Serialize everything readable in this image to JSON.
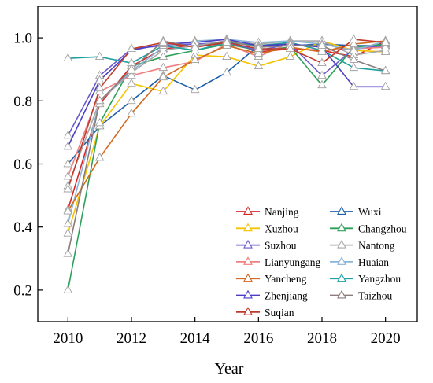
{
  "chart_data": {
    "type": "line",
    "title": "",
    "xlabel": "Year",
    "ylabel": "",
    "xlim": [
      2009.05,
      2021.0
    ],
    "ylim": [
      0.1,
      1.1
    ],
    "xticks": [
      2010,
      2012,
      2014,
      2016,
      2018,
      2020
    ],
    "yticks": [
      0.2,
      0.4,
      0.6,
      0.8,
      1.0
    ],
    "xtick_labels": [
      "2010",
      "2012",
      "2014",
      "2016",
      "2018",
      "2020"
    ],
    "ytick_labels": [
      "0.2",
      "0.4",
      "0.6",
      "0.8",
      "1.0"
    ],
    "grid": false,
    "legend_position": "lower-right",
    "marker": "hollow-triangle",
    "x": [
      2010,
      2011,
      2012,
      2013,
      2014,
      2015,
      2016,
      2017,
      2018,
      2019,
      2020
    ],
    "series": [
      {
        "name": "Nanjing",
        "color": "#d62728",
        "values": [
          0.455,
          0.79,
          0.91,
          0.965,
          0.975,
          0.99,
          0.955,
          0.965,
          0.96,
          0.94,
          0.99
        ]
      },
      {
        "name": "Wuxi",
        "color": "#1f5fa8",
        "values": [
          0.6,
          0.72,
          0.8,
          0.88,
          0.835,
          0.89,
          0.975,
          0.975,
          0.98,
          0.975,
          0.975
        ]
      },
      {
        "name": "Xuzhou",
        "color": "#f5c400",
        "values": [
          0.38,
          0.72,
          0.855,
          0.83,
          0.945,
          0.94,
          0.91,
          0.94,
          0.99,
          0.96,
          0.955
        ]
      },
      {
        "name": "Changzhou",
        "color": "#2ca05a",
        "values": [
          0.2,
          0.73,
          0.91,
          0.94,
          0.96,
          0.98,
          0.96,
          0.97,
          0.85,
          0.97,
          0.98
        ]
      },
      {
        "name": "Suzhou",
        "color": "#6a5acd",
        "values": [
          0.69,
          0.88,
          0.965,
          0.975,
          0.98,
          0.985,
          0.96,
          0.98,
          0.88,
          0.965,
          0.975
        ]
      },
      {
        "name": "Nantong",
        "color": "#a8a8a8",
        "values": [
          0.53,
          0.8,
          0.89,
          0.96,
          0.975,
          0.99,
          0.98,
          0.99,
          0.99,
          0.945,
          0.96
        ]
      },
      {
        "name": "Lianyungang",
        "color": "#f08080",
        "values": [
          0.56,
          0.83,
          0.88,
          0.905,
          0.925,
          0.98,
          0.94,
          0.985,
          0.96,
          0.965,
          0.97
        ]
      },
      {
        "name": "Huaian",
        "color": "#8ab4d8",
        "values": [
          0.41,
          0.8,
          0.895,
          0.97,
          0.99,
          0.995,
          0.985,
          0.99,
          0.98,
          0.96,
          0.99
        ]
      },
      {
        "name": "Yancheng",
        "color": "#d2691e",
        "values": [
          0.45,
          0.62,
          0.76,
          0.875,
          0.93,
          0.975,
          0.95,
          0.97,
          0.955,
          0.98,
          0.99
        ]
      },
      {
        "name": "Yangzhou",
        "color": "#20a0a0",
        "values": [
          0.935,
          0.94,
          0.92,
          0.975,
          0.96,
          0.985,
          0.975,
          0.985,
          0.96,
          0.905,
          0.895
        ]
      },
      {
        "name": "Zhenjiang",
        "color": "#4b3fc4",
        "values": [
          0.655,
          0.865,
          0.96,
          0.98,
          0.985,
          0.995,
          0.975,
          0.98,
          0.97,
          0.845,
          0.845
        ]
      },
      {
        "name": "Taizhou",
        "color": "#8b7d7b",
        "values": [
          0.315,
          0.8,
          0.9,
          0.99,
          0.97,
          0.99,
          0.97,
          0.975,
          0.975,
          0.93,
          0.895
        ]
      },
      {
        "name": "Suqian",
        "color": "#c0392b",
        "values": [
          0.52,
          0.84,
          0.965,
          0.985,
          0.97,
          0.985,
          0.965,
          0.965,
          0.92,
          0.995,
          0.985
        ]
      }
    ]
  }
}
